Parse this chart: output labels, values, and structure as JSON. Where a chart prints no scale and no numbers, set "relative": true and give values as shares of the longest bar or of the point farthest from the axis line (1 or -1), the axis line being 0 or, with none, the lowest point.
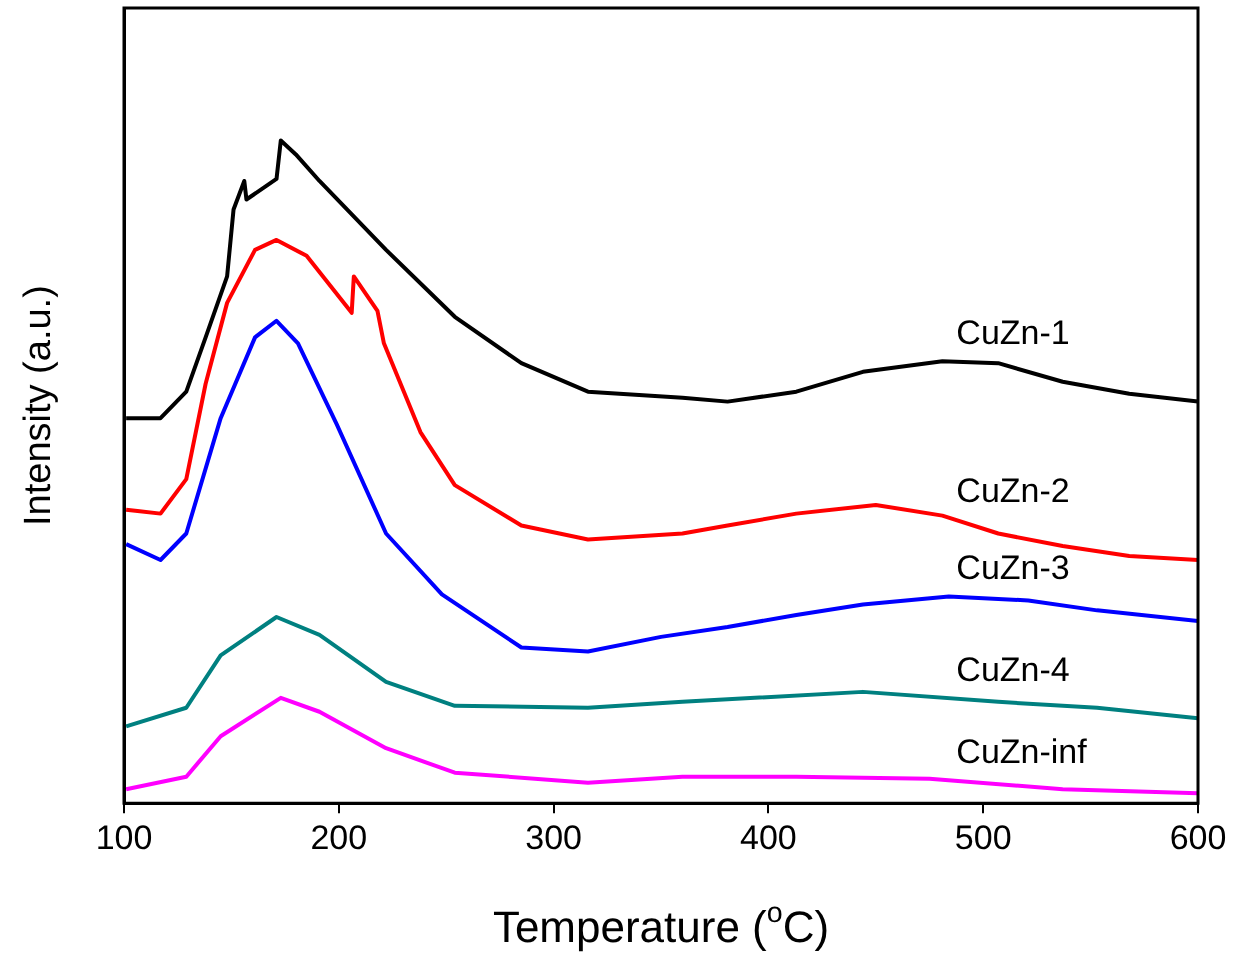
{
  "chart_data": {
    "type": "line",
    "xlabel": "Temperature ($^{o}$C)",
    "ylabel": "Intensity (a.u.)",
    "relative": true,
    "xlim": [
      100,
      600
    ],
    "xticks": [
      100,
      200,
      300,
      400,
      500,
      600
    ],
    "grid": false,
    "legend": false,
    "marker": "none",
    "line_style": "solid",
    "series": [
      {
        "name": "CuZn-1",
        "color": "#000000",
        "x": [
          101,
          117,
          129,
          138,
          148,
          151,
          156,
          157,
          171,
          173,
          180,
          191,
          222,
          254,
          285,
          316,
          360,
          381,
          413,
          444,
          481,
          507,
          537,
          568,
          600
        ],
        "values": [
          0.581,
          0.581,
          0.621,
          0.703,
          0.795,
          0.896,
          0.939,
          0.911,
          0.942,
          1.0,
          0.979,
          0.939,
          0.835,
          0.734,
          0.664,
          0.621,
          0.612,
          0.606,
          0.621,
          0.651,
          0.667,
          0.664,
          0.636,
          0.618,
          0.606
        ]
      },
      {
        "name": "CuZn-2",
        "color": "#ff0000",
        "x": [
          101,
          117,
          129,
          138,
          148,
          161,
          171,
          185,
          206,
          207,
          218,
          221,
          238,
          254,
          285,
          316,
          360,
          381,
          413,
          450,
          481,
          507,
          537,
          568,
          600
        ],
        "values": [
          0.443,
          0.437,
          0.489,
          0.633,
          0.755,
          0.835,
          0.85,
          0.826,
          0.74,
          0.795,
          0.743,
          0.694,
          0.56,
          0.48,
          0.419,
          0.398,
          0.407,
          0.419,
          0.437,
          0.45,
          0.434,
          0.407,
          0.388,
          0.373,
          0.367
        ]
      },
      {
        "name": "CuZn-3",
        "color": "#0000ff",
        "x": [
          101,
          117,
          129,
          145,
          161,
          171,
          181,
          199,
          222,
          248,
          285,
          316,
          350,
          381,
          413,
          444,
          484,
          521,
          553,
          600
        ],
        "values": [
          0.391,
          0.367,
          0.407,
          0.581,
          0.703,
          0.728,
          0.694,
          0.572,
          0.407,
          0.315,
          0.235,
          0.229,
          0.251,
          0.266,
          0.284,
          0.3,
          0.312,
          0.306,
          0.291,
          0.275
        ]
      },
      {
        "name": "CuZn-4",
        "color": "#008080",
        "x": [
          101,
          129,
          145,
          171,
          191,
          222,
          254,
          316,
          360,
          444,
          507,
          553,
          600
        ],
        "values": [
          0.116,
          0.144,
          0.223,
          0.281,
          0.254,
          0.183,
          0.147,
          0.144,
          0.153,
          0.168,
          0.153,
          0.144,
          0.128
        ]
      },
      {
        "name": "CuZn-inf",
        "color": "#ff00ff",
        "x": [
          101,
          129,
          145,
          173,
          191,
          222,
          254,
          316,
          360,
          413,
          475,
          537,
          600
        ],
        "values": [
          0.021,
          0.04,
          0.101,
          0.159,
          0.138,
          0.083,
          0.046,
          0.031,
          0.04,
          0.04,
          0.037,
          0.021,
          0.015
        ]
      }
    ]
  }
}
